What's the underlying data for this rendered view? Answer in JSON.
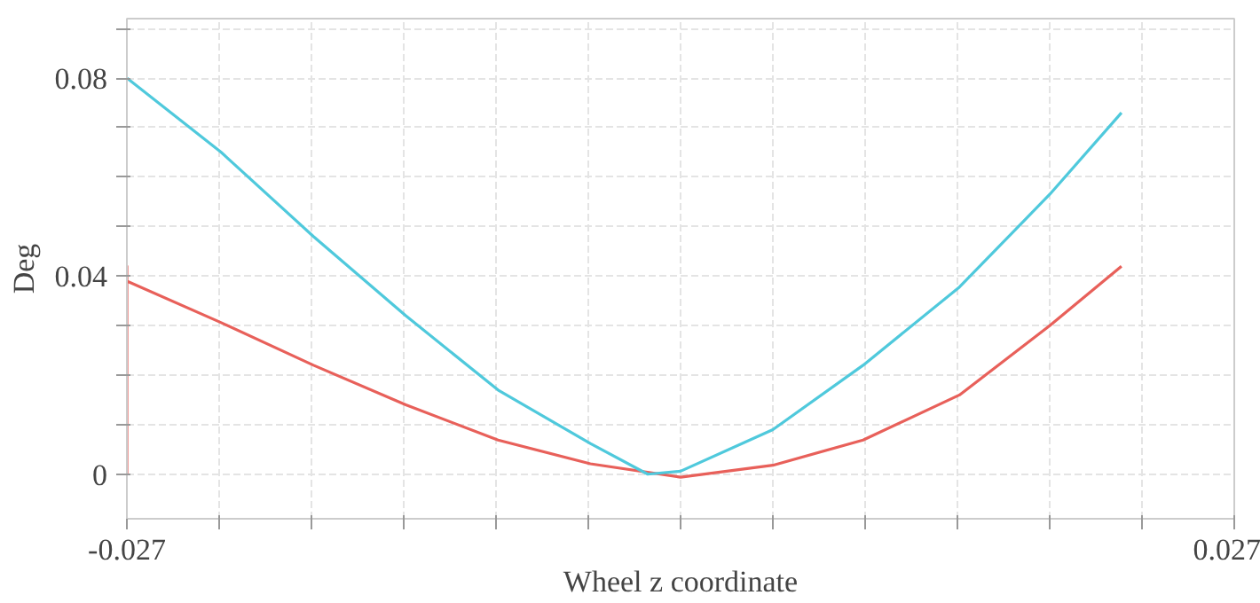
{
  "chart_data": {
    "type": "line",
    "xlabel": "Wheel z coordinate",
    "ylabel": "Deg",
    "xlim": [
      -0.027,
      0.027
    ],
    "ylim": [
      -0.009,
      0.092
    ],
    "xticks": [
      -0.027,
      {
        "value": -0.0225,
        "label": null
      },
      {
        "value": -0.018,
        "label": null
      },
      {
        "value": -0.0135,
        "label": null
      },
      {
        "value": -0.009,
        "label": null
      },
      {
        "value": -0.0045,
        "label": null
      },
      {
        "value": 0,
        "label": null
      },
      {
        "value": 0.0045,
        "label": null
      },
      {
        "value": 0.009,
        "label": null
      },
      {
        "value": 0.0135,
        "label": null
      },
      {
        "value": 0.018,
        "label": null
      },
      {
        "value": 0.0225,
        "label": null
      },
      0.027
    ],
    "yticks": [
      0,
      {
        "value": 0.01,
        "label": null
      },
      {
        "value": 0.02,
        "label": null
      },
      {
        "value": 0.03,
        "label": null
      },
      0.04,
      {
        "value": 0.05,
        "label": null
      },
      {
        "value": 0.06,
        "label": null
      },
      {
        "value": 0.07,
        "label": null
      },
      0.08,
      {
        "value": 0.09,
        "label": null
      }
    ],
    "grid": true,
    "marker": "none",
    "line_style": "solid",
    "series": [
      {
        "color": "#e8605a",
        "x": [
          -0.027,
          -0.027,
          -0.027,
          -0.0224,
          -0.0179,
          -0.0134,
          -0.0089,
          -0.0044,
          0.0,
          0.0045,
          0.0089,
          0.0136,
          0.018,
          0.0215
        ],
        "values": [
          0.0,
          0.042,
          0.039,
          0.0306,
          0.022,
          0.014,
          0.0069,
          0.0021,
          -0.0006,
          0.0018,
          0.0069,
          0.016,
          0.03,
          0.042
        ]
      },
      {
        "color": "#4fc9dc",
        "x": [
          -0.027,
          -0.0224,
          -0.0179,
          -0.0134,
          -0.0089,
          -0.0044,
          -0.0016,
          0.0,
          0.0045,
          0.0089,
          0.0136,
          0.018,
          0.0215
        ],
        "values": [
          0.08,
          0.065,
          0.048,
          0.032,
          0.017,
          0.0062,
          0.0,
          0.0006,
          0.009,
          0.022,
          0.0378,
          0.0565,
          0.073
        ]
      }
    ]
  }
}
